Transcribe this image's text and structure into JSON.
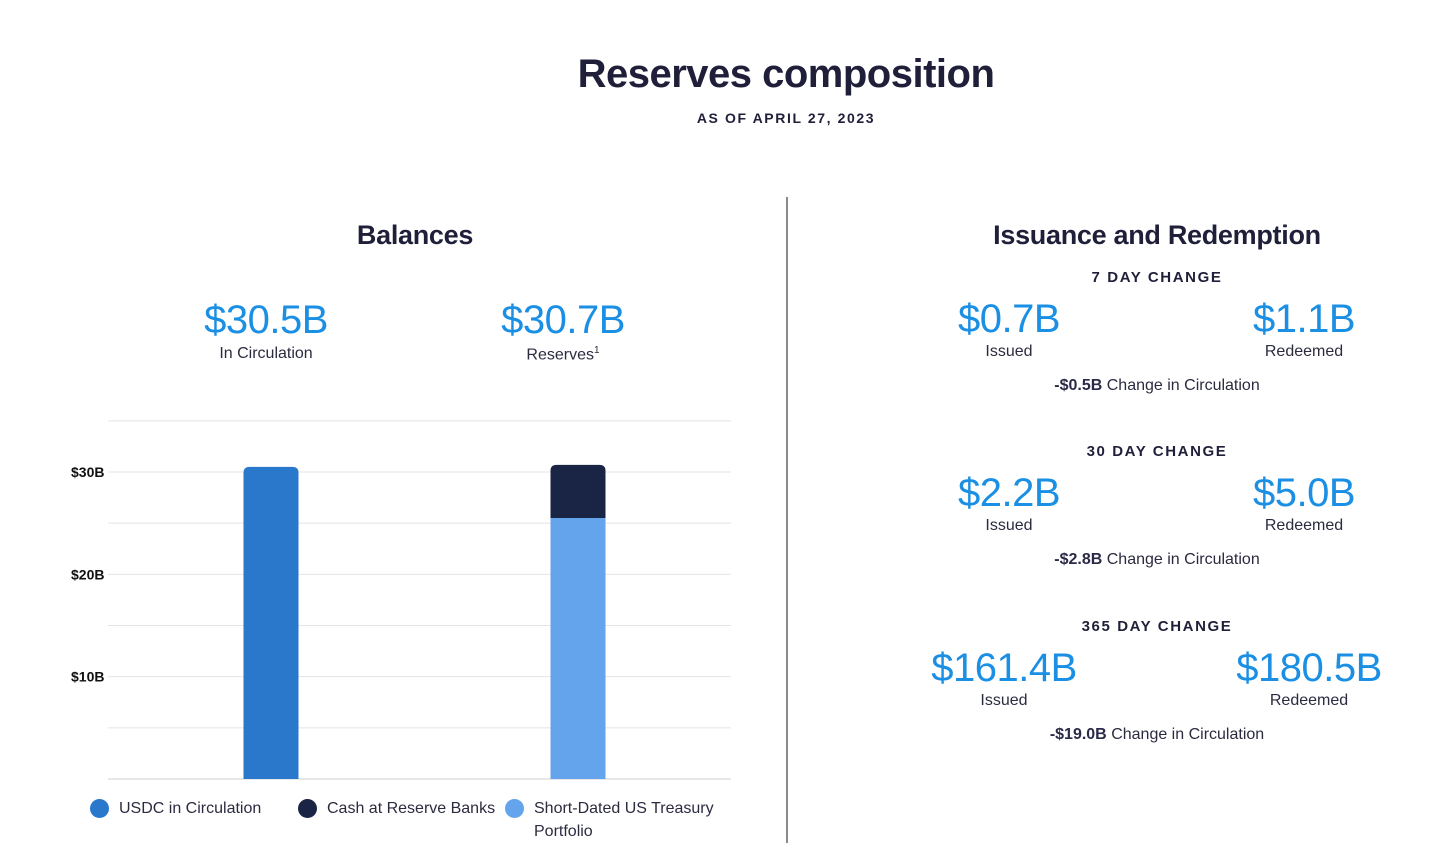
{
  "header": {
    "title": "Reserves composition",
    "date": "AS OF APRIL 27, 2023"
  },
  "balances": {
    "title": "Balances",
    "circulation": {
      "value": "$30.5B",
      "label": "In Circulation"
    },
    "reserves": {
      "value": "$30.7B",
      "label": "Reserves",
      "footnote": "1"
    }
  },
  "issuance": {
    "title": "Issuance and Redemption",
    "periods": [
      {
        "heading": "7 DAY CHANGE",
        "issued": "$0.7B",
        "issued_label": "Issued",
        "redeemed": "$1.1B",
        "redeemed_label": "Redeemed",
        "change_value": "-$0.5B",
        "change_label": "Change in Circulation"
      },
      {
        "heading": "30 DAY CHANGE",
        "issued": "$2.2B",
        "issued_label": "Issued",
        "redeemed": "$5.0B",
        "redeemed_label": "Redeemed",
        "change_value": "-$2.8B",
        "change_label": "Change in Circulation"
      },
      {
        "heading": "365 DAY CHANGE",
        "issued": "$161.4B",
        "issued_label": "Issued",
        "redeemed": "$180.5B",
        "redeemed_label": "Redeemed",
        "change_value": "-$19.0B",
        "change_label": "Change in Circulation"
      }
    ]
  },
  "colors": {
    "usdc": "#2a78cc",
    "cash": "#1a2444",
    "treasury": "#63a4ec",
    "accent": "#1a8fe3"
  },
  "chart_data": {
    "type": "bar",
    "stacked": true,
    "categories": [
      "In Circulation",
      "Reserves"
    ],
    "series": [
      {
        "name": "USDC in Circulation",
        "values": [
          30.5,
          0
        ],
        "color": "#2a78cc"
      },
      {
        "name": "Short-Dated US Treasury Portfolio",
        "values": [
          0,
          25.5
        ],
        "color": "#63a4ec"
      },
      {
        "name": "Cash at Reserve Banks",
        "values": [
          0,
          5.2
        ],
        "color": "#1a2444"
      }
    ],
    "yticks": [
      10,
      20,
      30
    ],
    "ytick_labels": [
      "$10B",
      "$20B",
      "$30B"
    ],
    "ylim": [
      0,
      35
    ],
    "grid": true,
    "legend": [
      "USDC in Circulation",
      "Cash at Reserve Banks",
      "Short-Dated US Treasury Portfolio"
    ],
    "legend_position": "bottom",
    "title": "Balances"
  }
}
